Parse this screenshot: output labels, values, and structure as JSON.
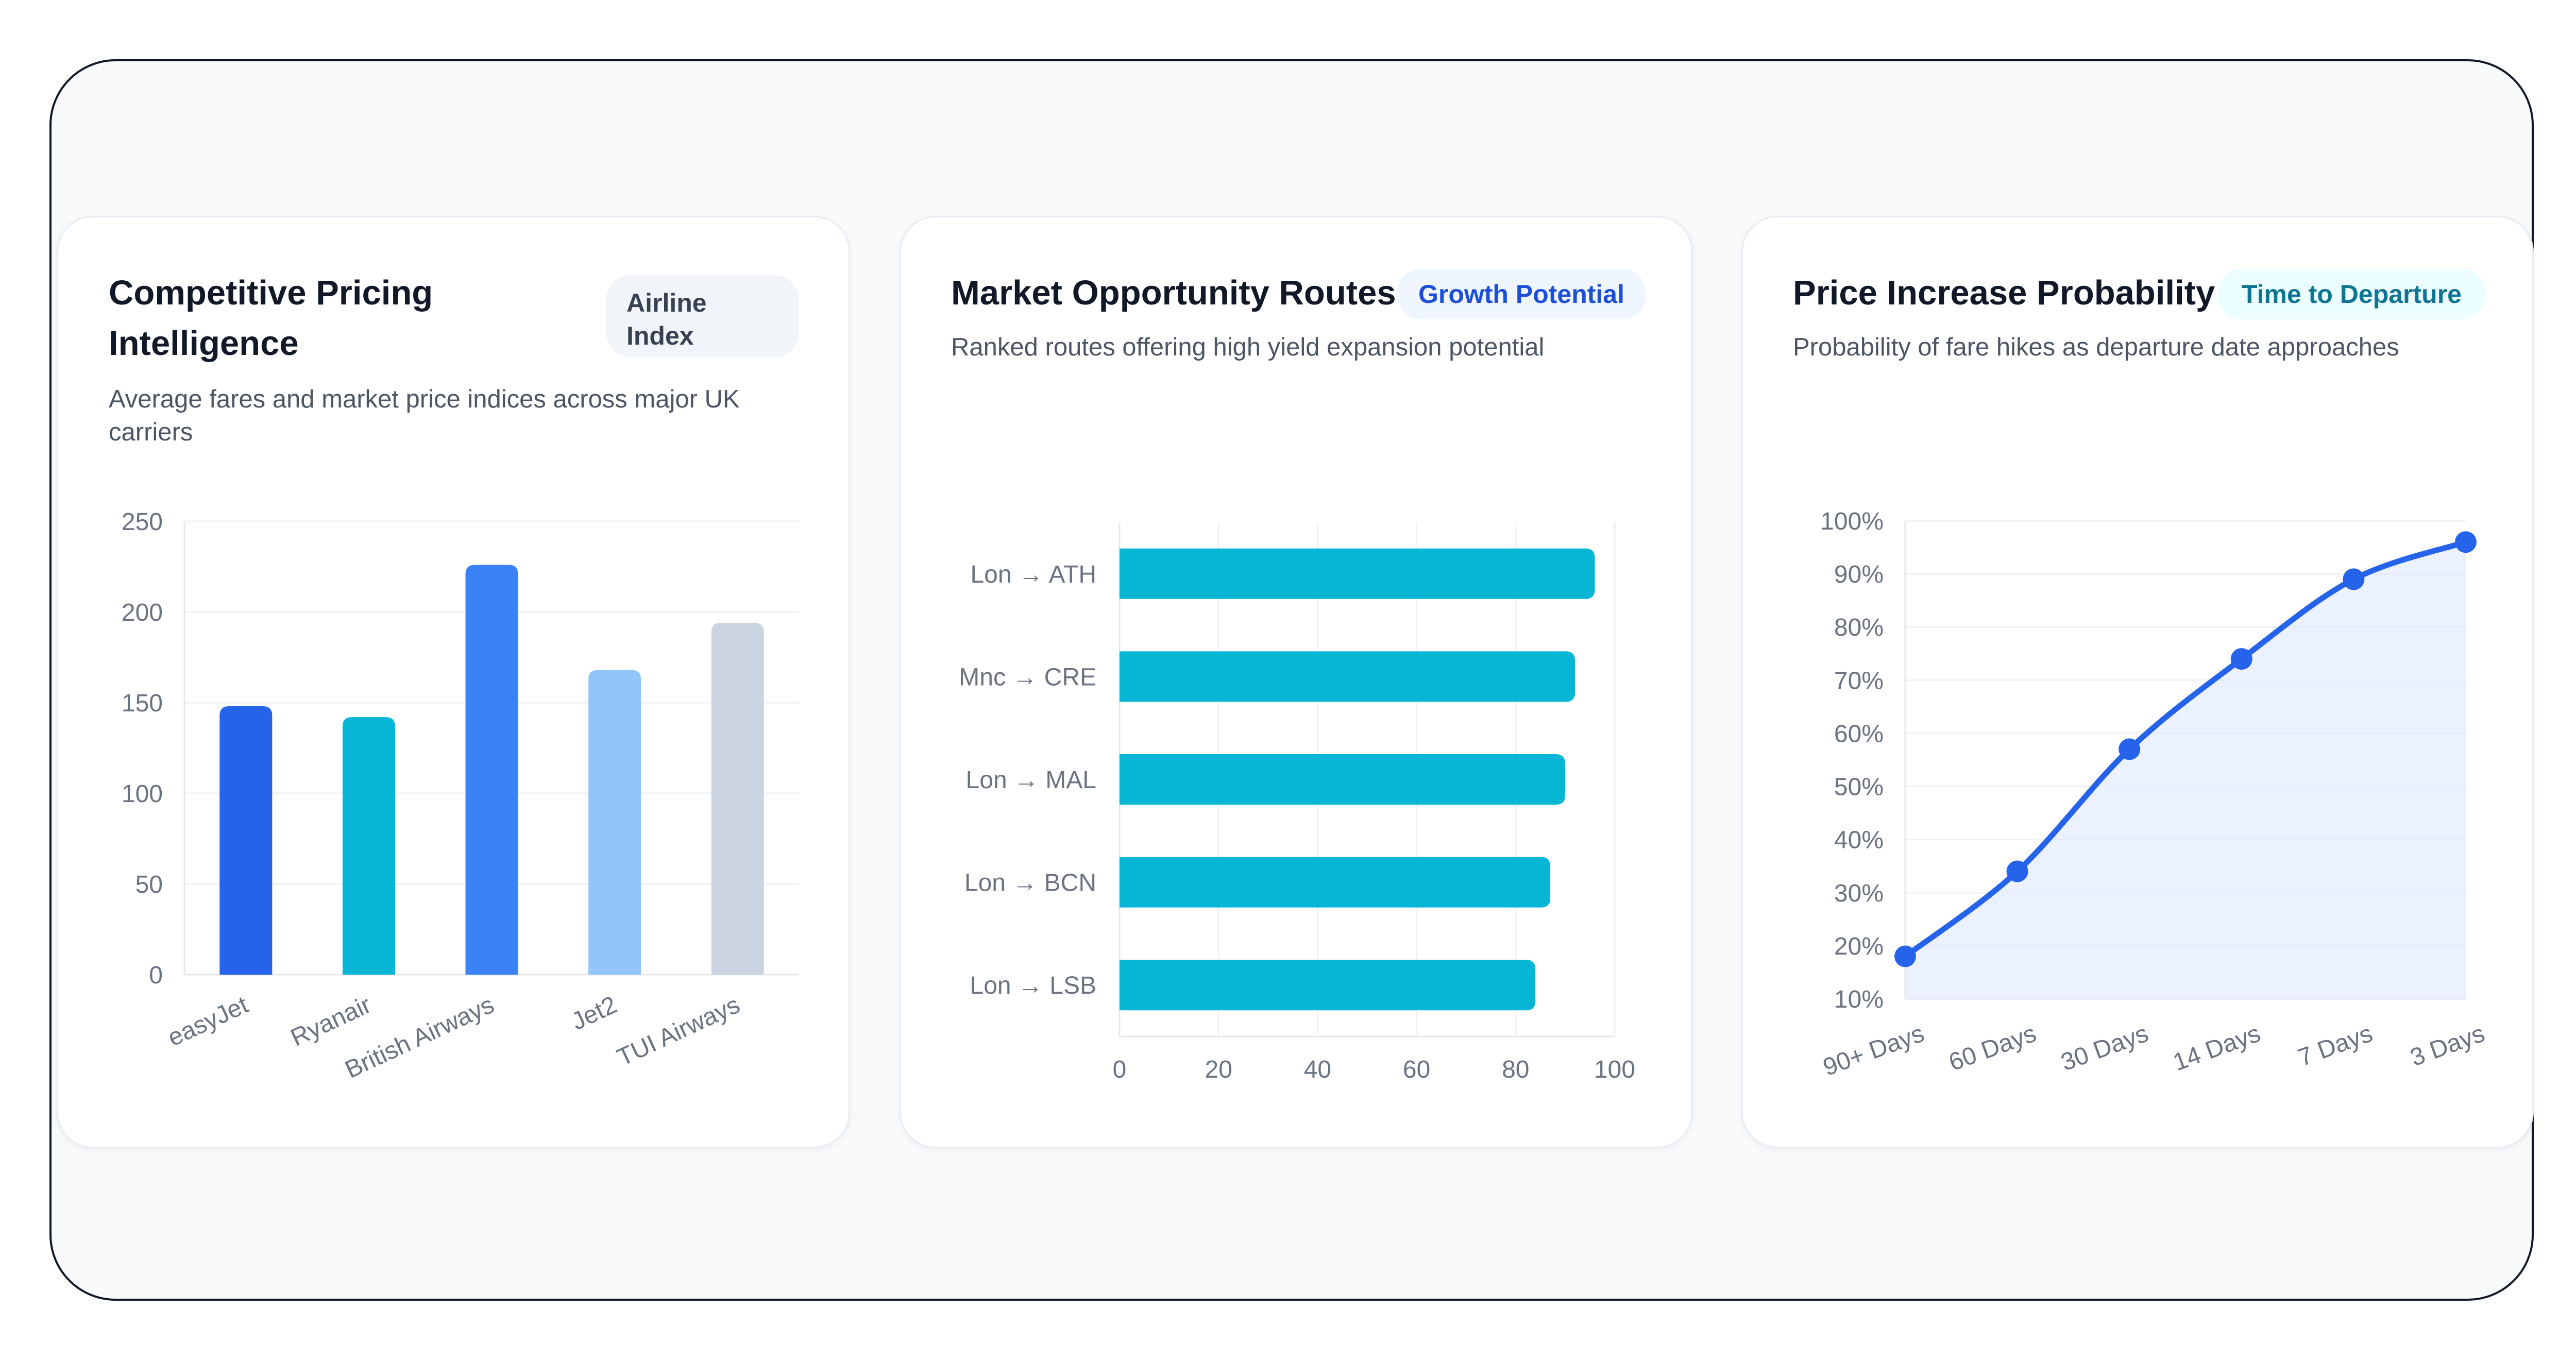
{
  "panels": [
    {
      "title": "Competitive Pricing Intelligence",
      "badge": "Airline Index",
      "subtitle": "Average fares and market price indices across major UK carriers"
    },
    {
      "title": "Market Opportunity Routes",
      "badge": "Growth Potential",
      "subtitle": "Ranked routes offering high yield expansion potential"
    },
    {
      "title": "Price Increase Probability",
      "badge": "Time to Departure",
      "subtitle": "Probability of fare hikes as departure date approaches"
    }
  ],
  "colors": {
    "badge_airline_bg": "#f1f5f9",
    "badge_airline_text": "#374151",
    "badge_growth_bg": "#eff6ff",
    "badge_growth_text": "#1d4ed8",
    "badge_time_bg": "#ecfeff",
    "badge_time_text": "#0e7490",
    "route_bar": "#06b6d4",
    "line": "#2563eb",
    "area": "#e0e7ff"
  },
  "chart_data": [
    {
      "type": "bar",
      "title": "Competitive Pricing Intelligence",
      "categories": [
        "easyJet",
        "Ryanair",
        "British Airways",
        "Jet2",
        "TUI Airways"
      ],
      "values": [
        148,
        142,
        226,
        168,
        194
      ],
      "bar_colors": [
        "#2563eb",
        "#06b6d4",
        "#3b82f6",
        "#93c5fd",
        "#cbd5e1"
      ],
      "ylim": [
        0,
        250
      ],
      "yticks": [
        0,
        50,
        100,
        150,
        200,
        250
      ],
      "grid": true,
      "legend": "none"
    },
    {
      "type": "bar",
      "orientation": "horizontal",
      "title": "Market Opportunity Routes",
      "categories": [
        "Lon → ATH",
        "Mnc → CRE",
        "Lon → MAL",
        "Lon → BCN",
        "Lon → LSB"
      ],
      "values": [
        96,
        92,
        90,
        87,
        84
      ],
      "xlim": [
        0,
        100
      ],
      "xticks": [
        0,
        20,
        40,
        60,
        80,
        100
      ],
      "grid": true,
      "legend": "none"
    },
    {
      "type": "area",
      "title": "Price Increase Probability",
      "categories": [
        "90+ Days",
        "60 Days",
        "30 Days",
        "14 Days",
        "7 Days",
        "3 Days"
      ],
      "values": [
        18,
        34,
        57,
        74,
        89,
        96
      ],
      "ylim": [
        10,
        100
      ],
      "yticks": [
        "10%",
        "20%",
        "30%",
        "40%",
        "50%",
        "60%",
        "70%",
        "80%",
        "90%",
        "100%"
      ],
      "grid": true,
      "legend": "none"
    }
  ]
}
